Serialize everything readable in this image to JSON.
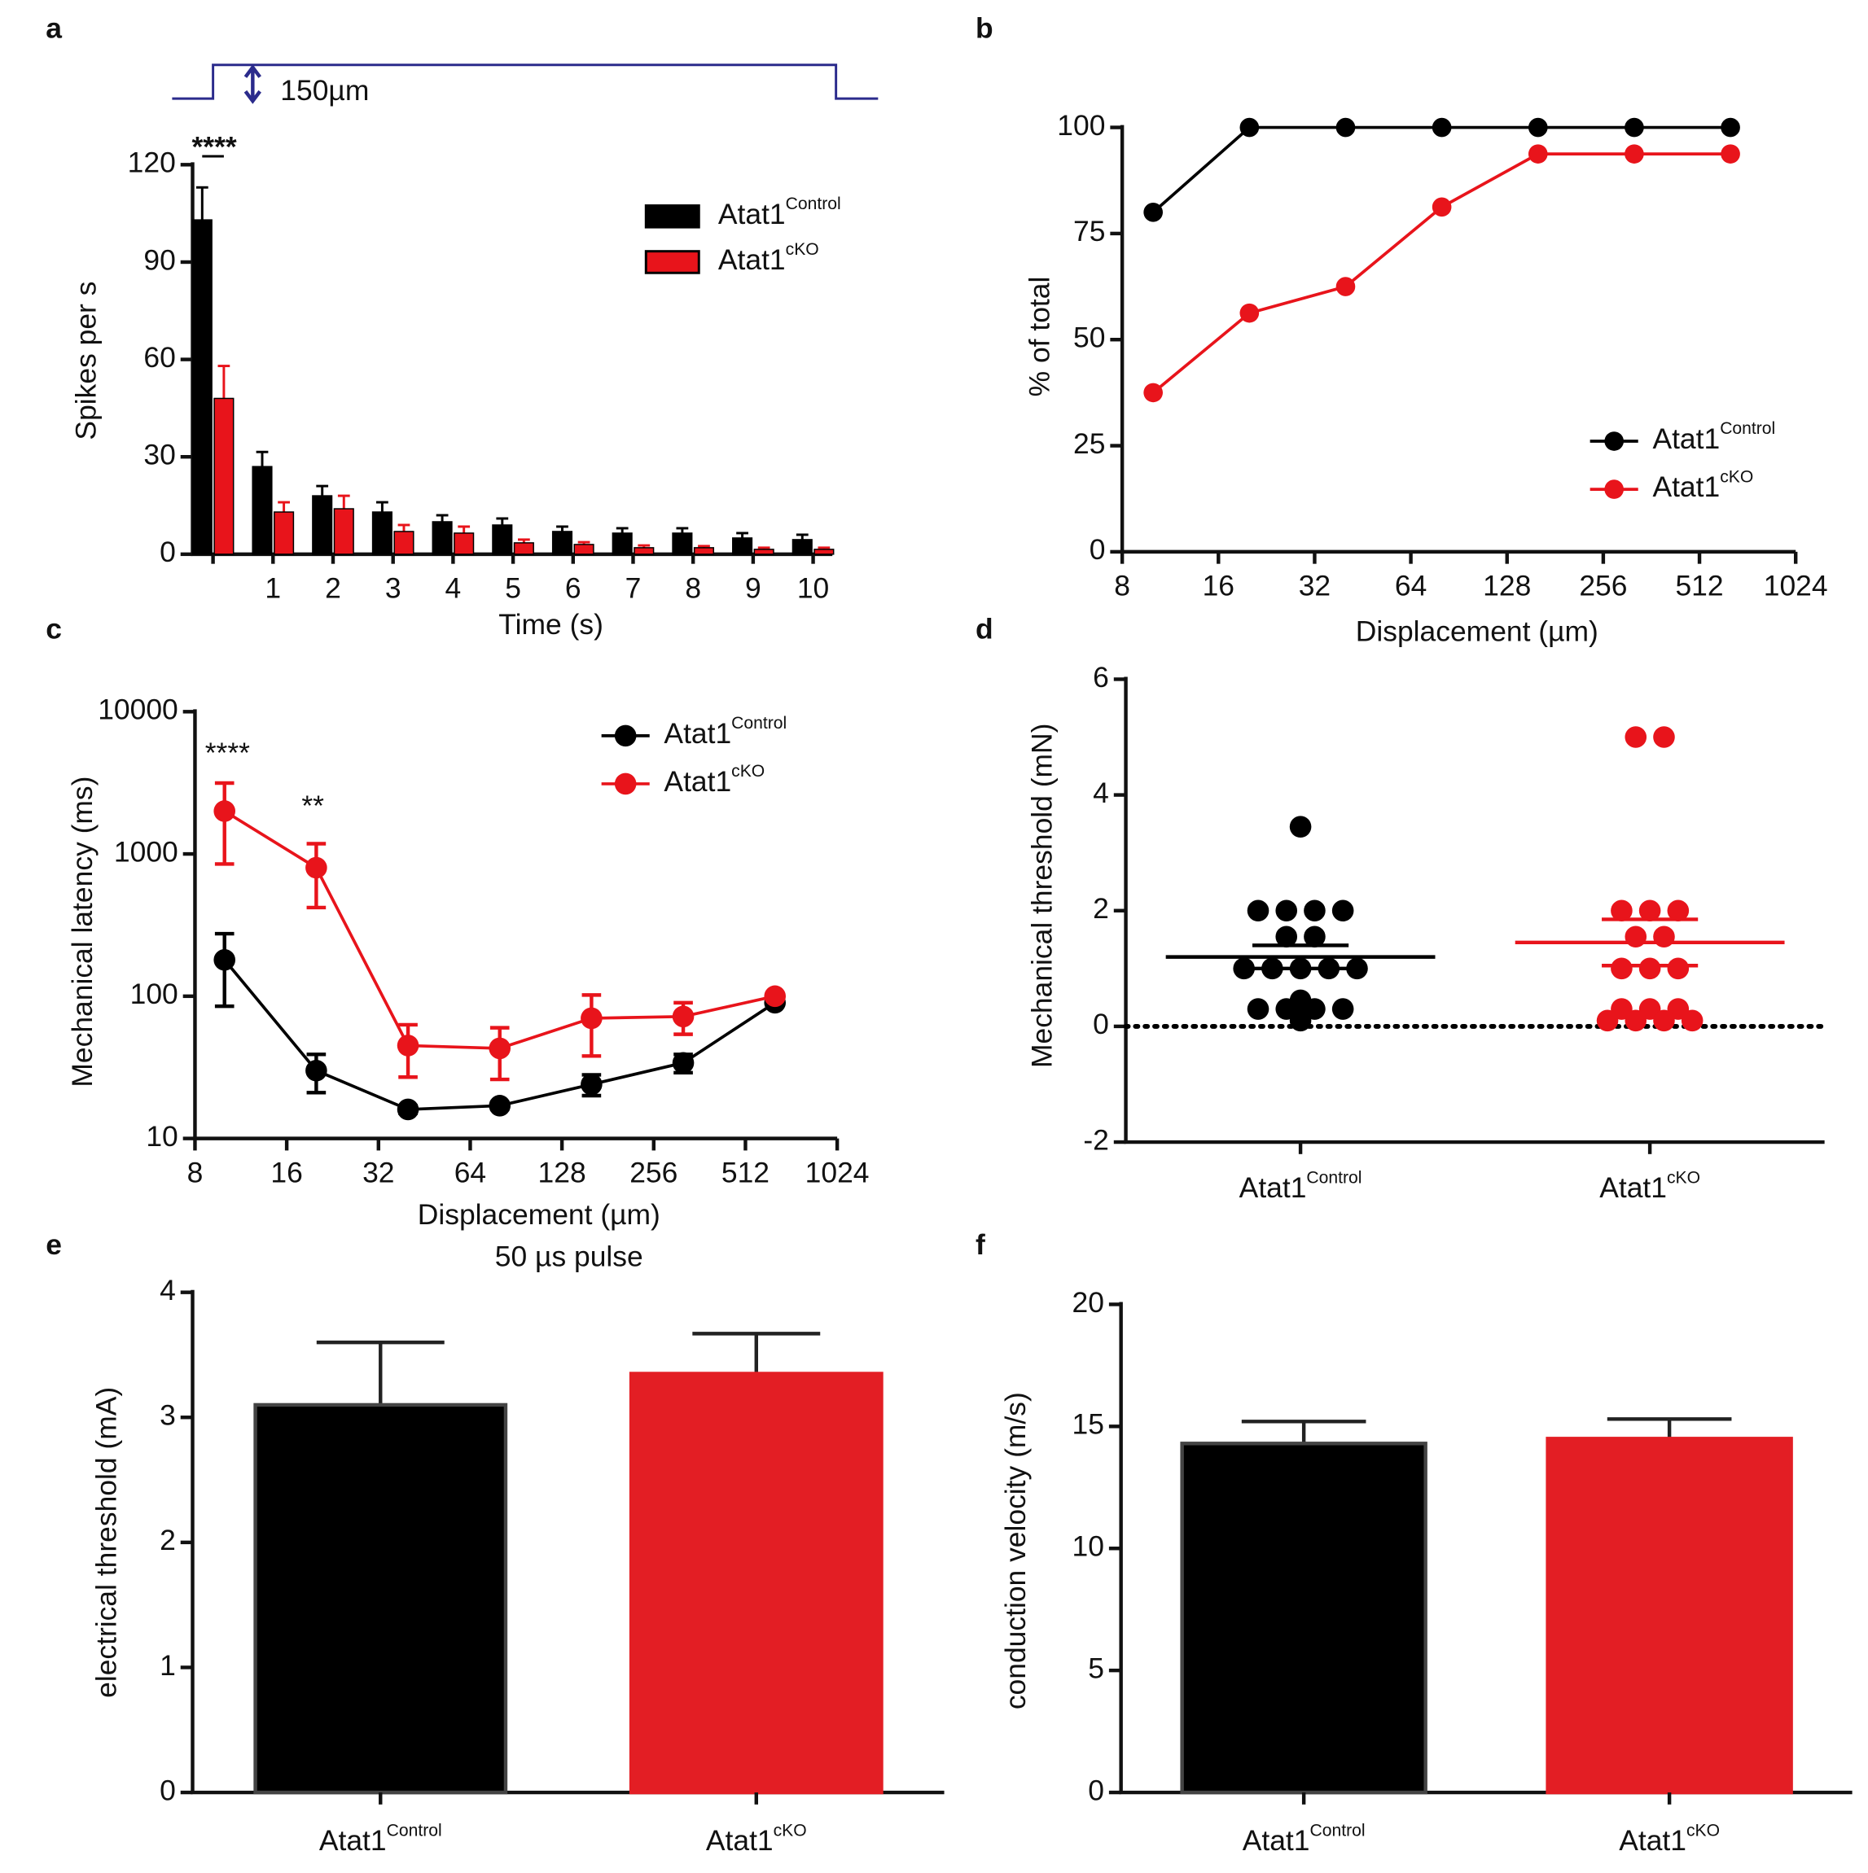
{
  "chart_data": [
    {
      "panel": "a",
      "type": "bar",
      "xlabel": "Time (s)",
      "ylabel": "Spikes per s",
      "categories": [
        null,
        "1",
        "2",
        "3",
        "4",
        "5",
        "6",
        "7",
        "8",
        "9",
        "10"
      ],
      "series": [
        {
          "name": "Atat1",
          "name_sup": "Control",
          "color": "#000000",
          "values": [
            103,
            27,
            18,
            13,
            10,
            9,
            7,
            6.5,
            6.5,
            5,
            4.5
          ],
          "errors": [
            10,
            4.5,
            3,
            3,
            2,
            2,
            1.5,
            1.5,
            1.5,
            1.5,
            1.5
          ]
        },
        {
          "name": "Atat1",
          "name_sup": "cKO",
          "color": "#e8141b",
          "values": [
            48,
            13,
            14,
            7,
            6.5,
            3.5,
            3,
            2,
            2,
            1.5,
            1.5
          ],
          "errors": [
            10,
            3,
            4,
            2,
            2,
            1,
            0.7,
            0.7,
            0.5,
            0.5,
            0.5
          ]
        }
      ],
      "ylim": [
        0,
        120
      ],
      "yticks": [
        0,
        30,
        60,
        90,
        120
      ],
      "stimulus_label": "150µm",
      "annotations": [
        "****"
      ]
    },
    {
      "panel": "b",
      "type": "line",
      "xlabel": "Displacement (µm)",
      "ylabel": "% of total",
      "x": [
        10,
        20,
        40,
        80,
        160,
        320,
        640
      ],
      "series": [
        {
          "name": "Atat1",
          "name_sup": "Control",
          "color": "#000000",
          "values": [
            80,
            100,
            100,
            100,
            100,
            100,
            100
          ]
        },
        {
          "name": "Atat1",
          "name_sup": "cKO",
          "color": "#e8141b",
          "values": [
            37.5,
            56.25,
            62.5,
            81.25,
            93.75,
            93.75,
            93.75
          ]
        }
      ],
      "xlim": [
        8,
        1024
      ],
      "xticks": [
        8,
        16,
        32,
        64,
        128,
        256,
        512,
        1024
      ],
      "xscale": "log2",
      "ylim": [
        0,
        100
      ],
      "yticks": [
        0,
        25,
        50,
        75,
        100
      ],
      "legend": "lower right"
    },
    {
      "panel": "c",
      "type": "line",
      "xlabel": "Displacement (µm)",
      "ylabel": "Mechanical latency (ms)",
      "x": [
        10,
        20,
        40,
        80,
        160,
        320,
        640
      ],
      "series": [
        {
          "name": "Atat1",
          "name_sup": "Control",
          "color": "#000000",
          "values": [
            180,
            30,
            16,
            17,
            24,
            34,
            90
          ],
          "errors": [
            95,
            9,
            1,
            1,
            4,
            5,
            3
          ]
        },
        {
          "name": "Atat1",
          "name_sup": "cKO",
          "color": "#e8141b",
          "values": [
            2000,
            800,
            45,
            43,
            70,
            72,
            100
          ],
          "errors": [
            1150,
            380,
            18,
            17,
            32,
            18,
            3
          ]
        }
      ],
      "xlim": [
        8,
        1024
      ],
      "xticks": [
        8,
        16,
        32,
        64,
        128,
        256,
        512,
        1024
      ],
      "xscale": "log2",
      "ylim": [
        10,
        10000
      ],
      "yticks": [
        10,
        100,
        1000,
        10000
      ],
      "yscale": "log10",
      "legend": "upper right",
      "annotations": [
        "****",
        "**"
      ]
    },
    {
      "panel": "d",
      "type": "scatter",
      "ylabel": "Mechanical threshold (mN)",
      "groups": [
        {
          "name": "Atat1",
          "name_sup": "Control",
          "color": "#000000",
          "values": [
            3.45,
            2,
            2,
            2,
            2,
            1.55,
            1.55,
            1,
            1,
            1,
            1,
            1,
            0.45,
            0.3,
            0.3,
            0.3,
            0.3,
            0.1
          ],
          "mean": 1.2,
          "sem": 0.2
        },
        {
          "name": "Atat1",
          "name_sup": "cKO",
          "color": "#e8141b",
          "values": [
            5,
            5,
            2,
            2,
            2,
            1.55,
            1.55,
            1,
            1,
            1,
            0.3,
            0.3,
            0.3,
            0.1,
            0.1,
            0.1,
            0.1
          ],
          "mean": 1.45,
          "sem": 0.4
        }
      ],
      "ylim": [
        -2,
        6
      ],
      "yticks": [
        -2,
        0,
        2,
        4,
        6
      ]
    },
    {
      "panel": "e",
      "type": "bar",
      "title": "50 µs pulse",
      "ylabel": "electrical threshold (mA)",
      "categories": [
        "Atat1",
        "Atat1"
      ],
      "category_sups": [
        "Control",
        "cKO"
      ],
      "values": [
        3.1,
        3.35
      ],
      "errors": [
        0.5,
        0.32
      ],
      "colors": [
        "#000000",
        "#e31e24"
      ],
      "ylim": [
        0,
        4
      ],
      "yticks": [
        0,
        1,
        2,
        3,
        4
      ]
    },
    {
      "panel": "f",
      "type": "bar",
      "ylabel": "conduction velocity (m/s)",
      "categories": [
        "Atat1",
        "Atat1"
      ],
      "category_sups": [
        "Control",
        "cKO"
      ],
      "values": [
        14.3,
        14.5
      ],
      "errors": [
        0.9,
        0.8
      ],
      "colors": [
        "#000000",
        "#e31e24"
      ],
      "ylim": [
        0,
        20
      ],
      "yticks": [
        0,
        5,
        10,
        15,
        20
      ]
    }
  ]
}
